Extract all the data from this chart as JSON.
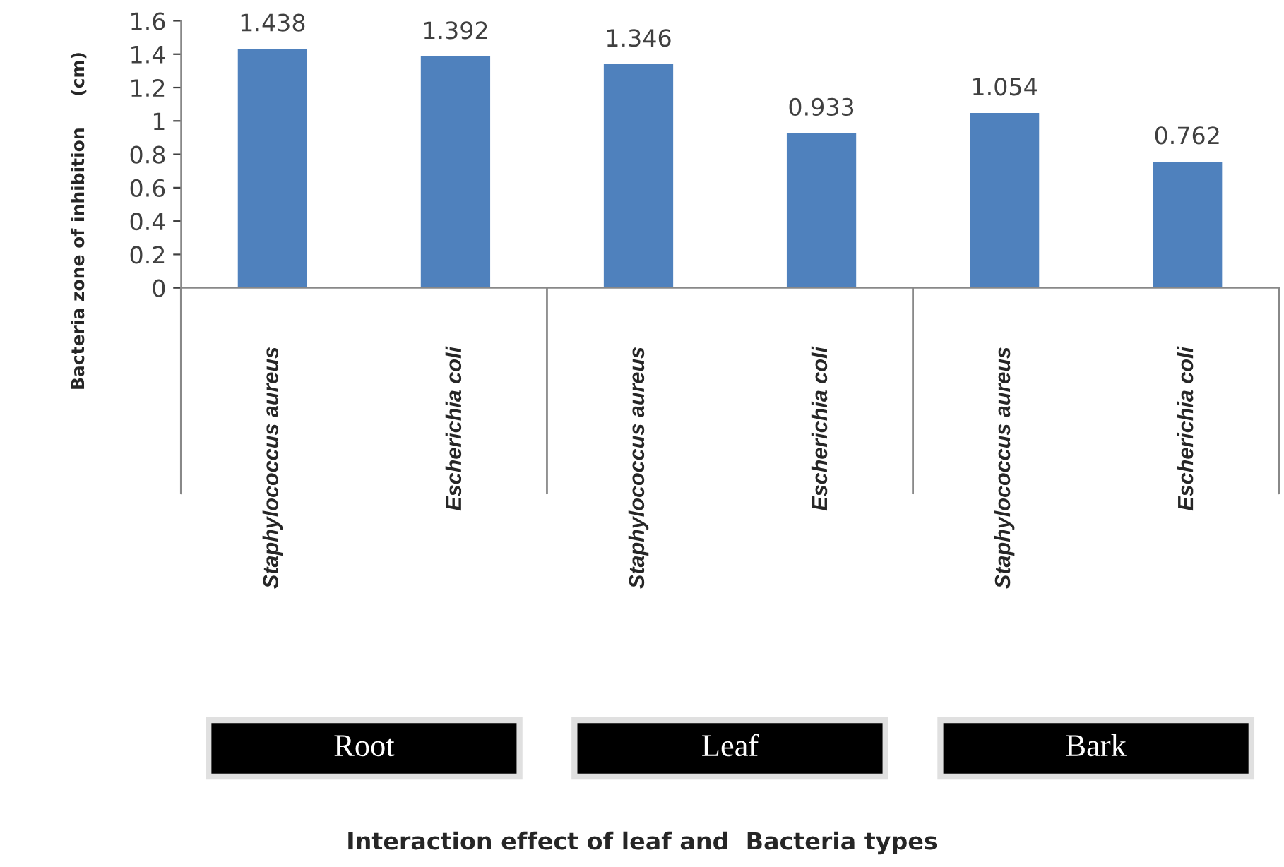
{
  "chart_data": {
    "type": "bar",
    "categories": [
      "Staphylococcus aureus",
      "Escherichia coli",
      "Staphylococcus aureus",
      "Escherichia coli",
      "Staphylococcus aureus",
      "Escherichia coli"
    ],
    "values": [
      1.438,
      1.392,
      1.346,
      0.933,
      1.054,
      0.762
    ],
    "color": "#4f81bd",
    "ylim": [
      0,
      1.6
    ],
    "yticks": [
      0,
      0.2,
      0.4,
      0.6,
      0.8,
      1,
      1.2,
      1.4,
      1.6
    ],
    "ylabel": "Bacteria zone of inhibition     (cm)",
    "annotations": [
      "Root",
      "Leaf",
      "Bark",
      "Interaction effect of leaf and  Bacteria types"
    ],
    "data_labels": true,
    "grid": false,
    "legend": false
  }
}
